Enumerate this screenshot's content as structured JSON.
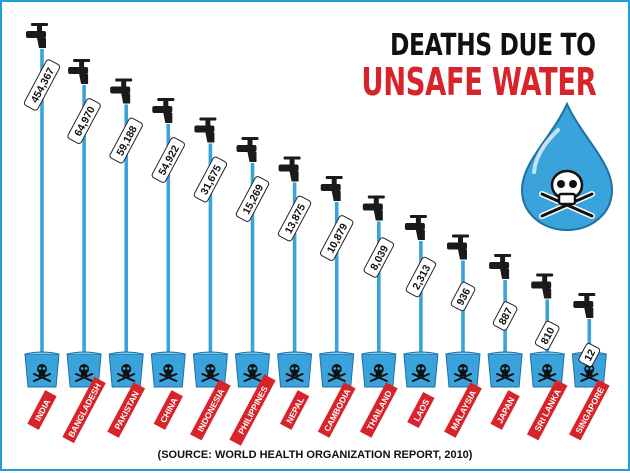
{
  "header": {
    "title_line1": "DEATHS DUE TO",
    "title_line2": "UNSAFE WATER"
  },
  "footer": {
    "source": "(SOURCE: WORLD HEALTH ORGANIZATION REPORT, 2010)"
  },
  "colors": {
    "water": "#3aa3dc",
    "label_bar": "#d6242a",
    "title_accent": "#d6242a",
    "border": "#1ea1d8"
  },
  "icons": {
    "tap": "water-tap-icon",
    "glass": "water-glass-icon",
    "poison": "skull-crossbones-icon",
    "drop": "water-drop-icon"
  },
  "chart_data": {
    "type": "bar",
    "title": "DEATHS DUE TO UNSAFE WATER",
    "categories": [
      "INDIA",
      "BANGLADESH",
      "PAKISTAN",
      "CHINA",
      "INDONESIA",
      "PHILIPPINES",
      "NEPAL",
      "CAMBODIA",
      "THAILAND",
      "LAOS",
      "MALAYSIA",
      "JAPAN",
      "SRI LANKA",
      "SINGAPORE"
    ],
    "values": [
      454367,
      64970,
      59188,
      54922,
      31675,
      15269,
      13875,
      10879,
      8039,
      2313,
      936,
      887,
      810,
      12
    ],
    "value_labels": [
      "454,367",
      "64,970",
      "59,188",
      "54,922",
      "31,675",
      "15,269",
      "13,875",
      "10,879",
      "8,039",
      "2,313",
      "936",
      "887",
      "810",
      "12"
    ],
    "xlabel": "",
    "ylabel": ""
  }
}
